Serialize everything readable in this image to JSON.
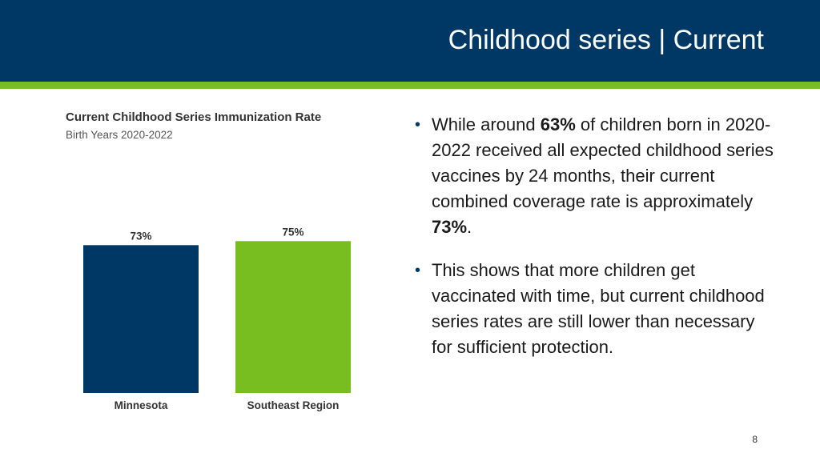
{
  "slide": {
    "title": "Childhood series | Current",
    "page_number": "8"
  },
  "colors": {
    "header_bg": "#003865",
    "header_stripe": "#78be21",
    "bar_minnesota": "#003865",
    "bar_southeast": "#78be21"
  },
  "bullets": [
    {
      "parts": [
        {
          "text": "While around ",
          "bold": false
        },
        {
          "text": "63%",
          "bold": true
        },
        {
          "text": " of children born in 2020-2022 received all expected childhood series vaccines by 24 months, their current combined coverage rate is approximately ",
          "bold": false
        },
        {
          "text": "73%",
          "bold": true
        },
        {
          "text": ".",
          "bold": false
        }
      ]
    },
    {
      "parts": [
        {
          "text": "This shows that more children get vaccinated with time, but current childhood series rates are still lower than necessary for sufficient protection.",
          "bold": false
        }
      ]
    }
  ],
  "chart_data": {
    "type": "bar",
    "title": "Current Childhood Series Immunization Rate",
    "subtitle": "Birth Years 2020-2022",
    "categories": [
      "Minnesota",
      "Southeast Region"
    ],
    "values": [
      73,
      75
    ],
    "value_labels": [
      "73%",
      "75%"
    ],
    "unit": "%",
    "ylim": [
      0,
      100
    ],
    "grid": false,
    "legend": "none"
  }
}
